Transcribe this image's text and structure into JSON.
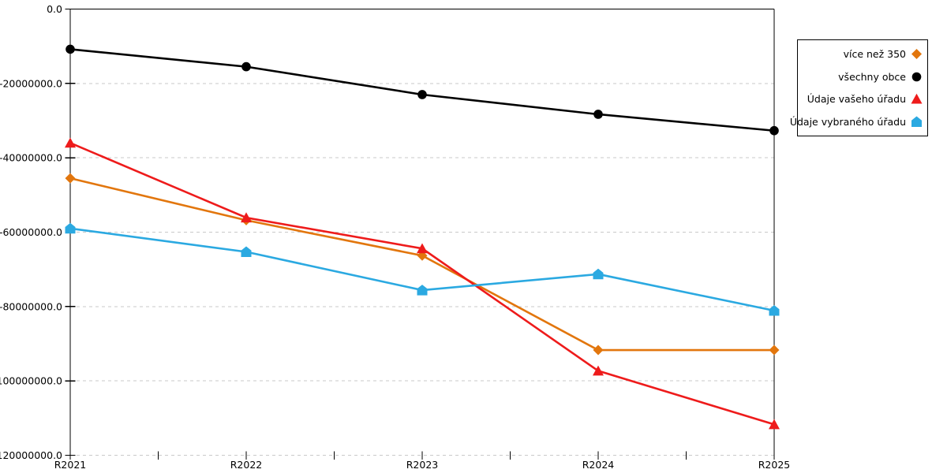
{
  "chart_data": {
    "type": "line",
    "title": "",
    "xlabel": "",
    "ylabel": "",
    "x_categories": [
      "R2021",
      "R2022",
      "R2023",
      "R2024",
      "R2025"
    ],
    "series": [
      {
        "name": "více než 350",
        "marker": "diamond",
        "color": "#E2760D",
        "values": [
          -45500000,
          -56800000,
          -66300000,
          -91700000,
          -91700000
        ]
      },
      {
        "name": "všechny obce",
        "marker": "circle",
        "color": "#000000",
        "values": [
          -10800000,
          -15500000,
          -23000000,
          -28300000,
          -32700000
        ]
      },
      {
        "name": "Údaje vašeho úřadu",
        "marker": "triangle",
        "color": "#EE1B1B",
        "values": [
          -36000000,
          -56100000,
          -64400000,
          -97300000,
          -111700000
        ]
      },
      {
        "name": "Údaje vybraného úřadu",
        "marker": "pentagon",
        "color": "#2BA9E1",
        "values": [
          -59000000,
          -65300000,
          -75600000,
          -71300000,
          -81100000
        ]
      }
    ],
    "y_ticks": [
      0,
      -20000000,
      -40000000,
      -60000000,
      -80000000,
      -100000000,
      -120000000
    ],
    "y_tick_labels": [
      "0.0",
      "-20000000.0",
      "-40000000.0",
      "-60000000.0",
      "-80000000.0",
      "-100000000.0",
      "-120000000.0"
    ],
    "ylim": [
      -120000000,
      0
    ],
    "grid": "horizontal-dashed",
    "legend_position": "right",
    "colors": {
      "gridline": "#C9C9C9",
      "axis": "#000000",
      "background": "#FFFFFF"
    }
  }
}
